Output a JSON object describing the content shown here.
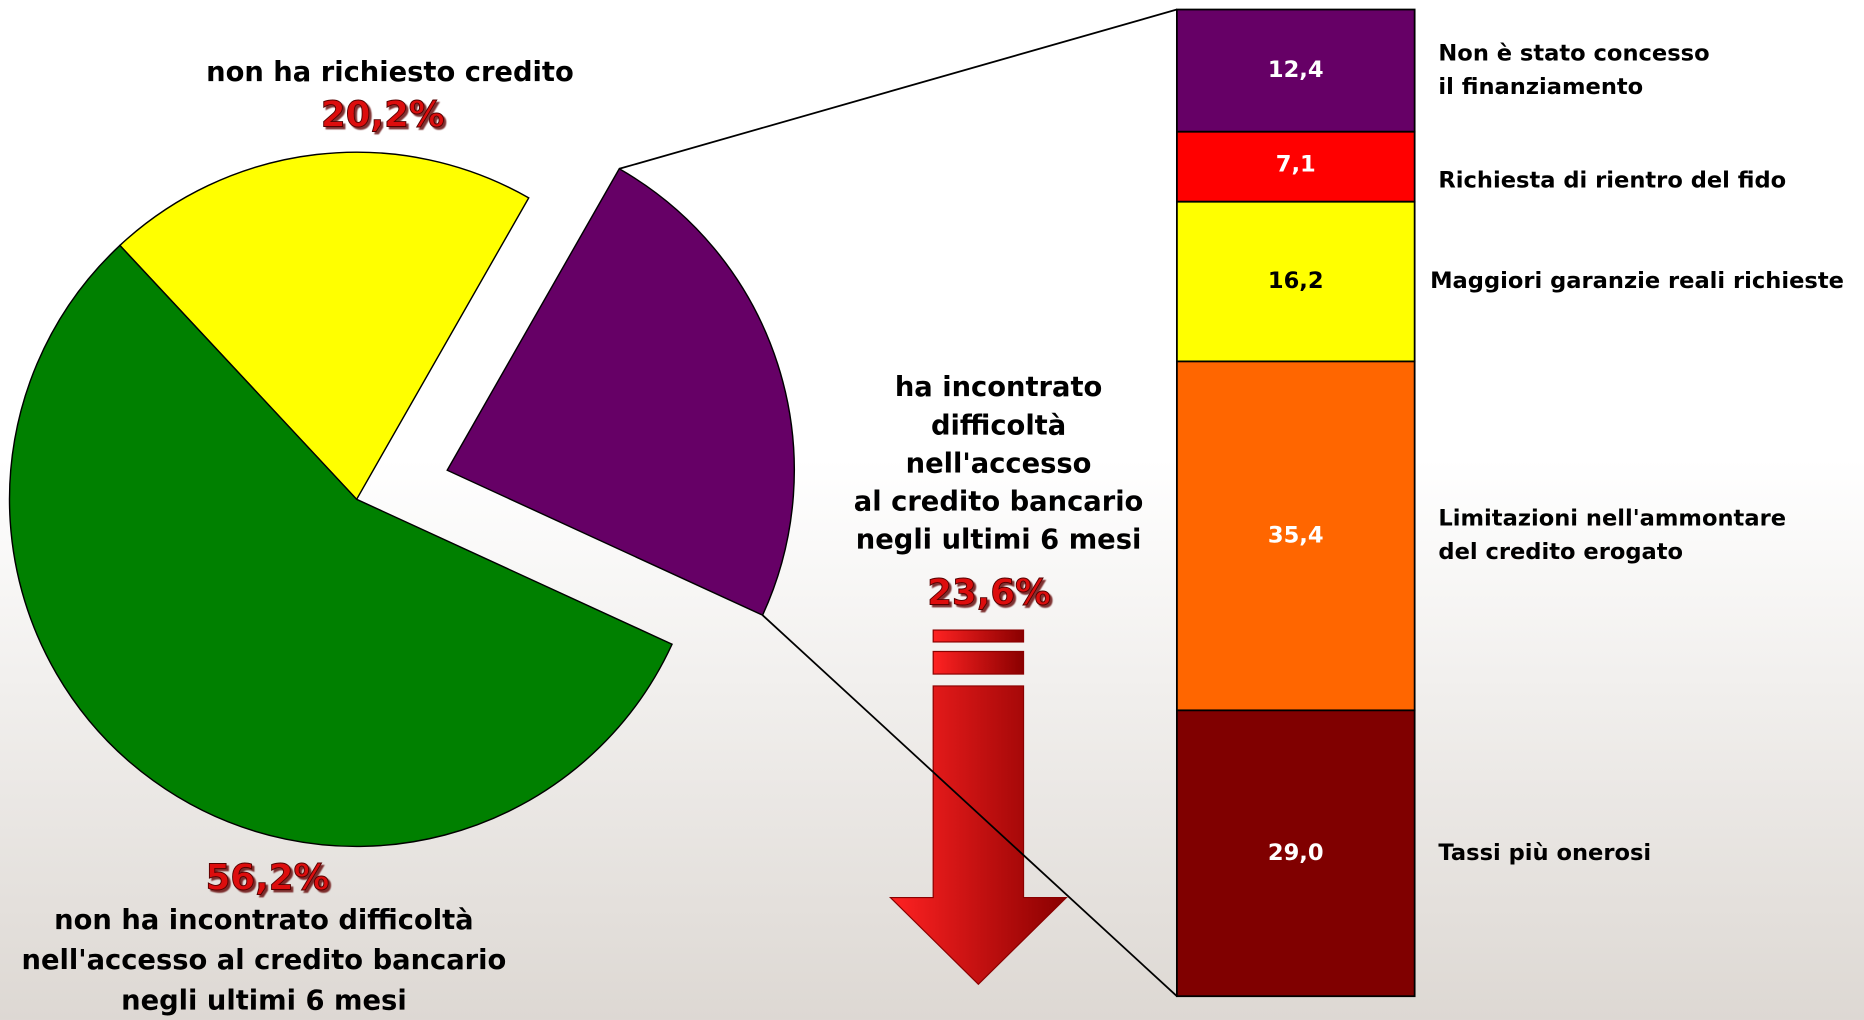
{
  "chart_data": [
    {
      "type": "pie",
      "categories": [
        [
          "non ha richiesto credito"
        ],
        [
          "ha incontrato",
          "difficoltà",
          "nell'accesso",
          "al credito bancario",
          "negli ultimi 6 mesi"
        ],
        [
          "non ha incontrato difficoltà",
          "nell'accesso al credito bancario",
          "negli ultimi 6 mesi"
        ]
      ],
      "values": [
        20.2,
        23.6,
        56.2
      ],
      "value_labels": [
        "20,2%",
        "23,6%",
        "56,2%"
      ],
      "colors": [
        "#ffff00",
        "#660066",
        "#008000"
      ]
    },
    {
      "type": "bar",
      "stacked": true,
      "categories": [
        [
          "Non è stato concesso",
          "il finanziamento"
        ],
        [
          "Richiesta di rientro del fido"
        ],
        [
          "Maggiori garanzie reali richieste"
        ],
        [
          "Limitazioni nell'ammontare",
          "del credito erogato"
        ],
        [
          "Tassi  più onerosi"
        ]
      ],
      "values": [
        12.4,
        7.1,
        16.2,
        35.4,
        29.0
      ],
      "value_labels": [
        "12,4",
        "7,1",
        "16,2",
        "35,4",
        "29,0"
      ],
      "colors": [
        "#660066",
        "#ff0000",
        "#ffff00",
        "#ff6600",
        "#800000"
      ]
    }
  ]
}
